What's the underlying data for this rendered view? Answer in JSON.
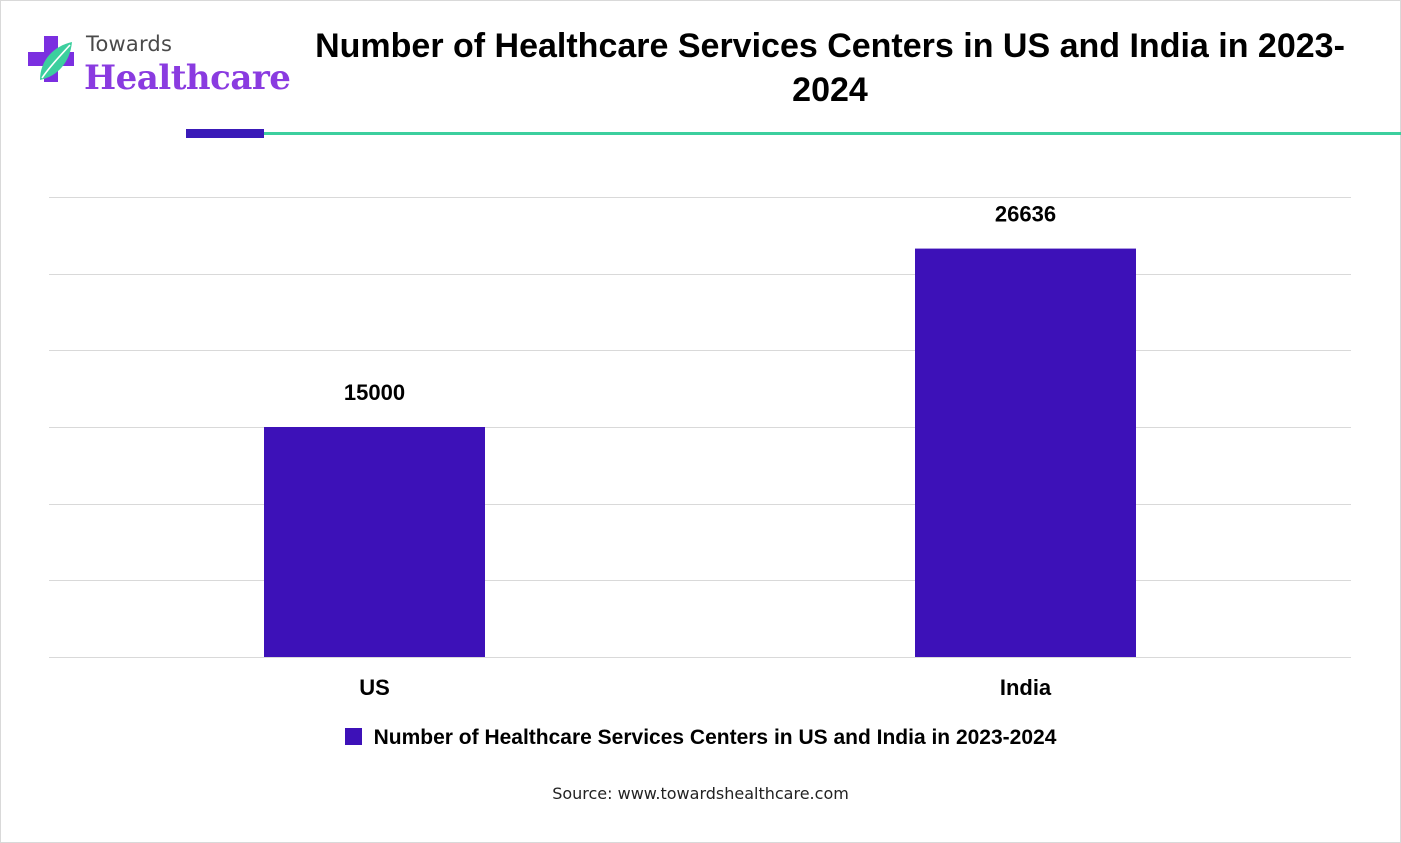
{
  "logo": {
    "line1": "Towards",
    "line2": "Healthcare"
  },
  "header": {
    "title": "Number of Healthcare Services Centers in US and India in 2023-2024"
  },
  "colors": {
    "bar": "#3d11b8",
    "accent_purple": "#3a1ab8",
    "accent_green": "#3ccf9e",
    "grid": "#d9d9d9"
  },
  "chart_data": {
    "type": "bar",
    "title": "Number of Healthcare Services Centers in US and India in 2023-2024",
    "categories": [
      "US",
      "India"
    ],
    "series": [
      {
        "name": "Number of Healthcare Services Centers in US and India in 2023-2024",
        "values": [
          15000,
          26636
        ]
      }
    ],
    "data_labels": [
      "15000",
      "26636"
    ],
    "xlabel": "",
    "ylabel": "",
    "ylim": [
      0,
      30000
    ],
    "grid": true,
    "y_ticks_shown": false,
    "legend_position": "bottom"
  },
  "legend": {
    "label": "Number of Healthcare Services Centers in US and India in 2023-2024"
  },
  "footer": {
    "source": "Source: www.towardshealthcare.com"
  }
}
